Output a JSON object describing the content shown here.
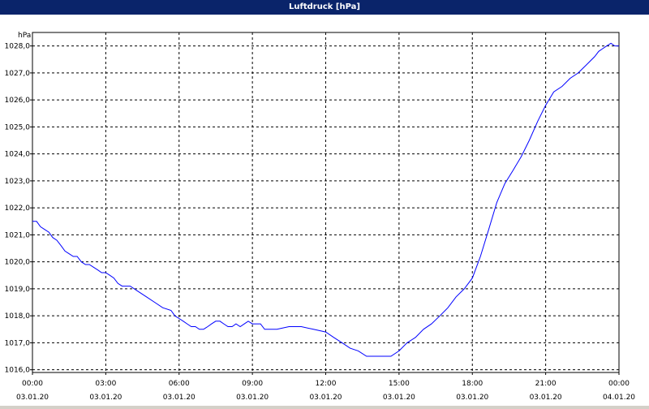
{
  "window": {
    "title": "Luftdruck [hPa]"
  },
  "colors": {
    "titlebar": "#0a246a",
    "line": "#0000ff",
    "background": "#ffffff",
    "grid": "#000000"
  },
  "chart_data": {
    "type": "line",
    "title": "Luftdruck [hPa]",
    "ylabel": "hPa",
    "xlabel": "",
    "ylim": [
      1015.9,
      1028.5
    ],
    "xlim_hours": [
      0,
      24
    ],
    "grid": true,
    "yticks": [
      "1016,0",
      "1017,0",
      "1018,0",
      "1019,0",
      "1020,0",
      "1021,0",
      "1022,0",
      "1023,0",
      "1024,0",
      "1025,0",
      "1026,0",
      "1027,0",
      "1028,0"
    ],
    "ytick_values": [
      1016,
      1017,
      1018,
      1019,
      1020,
      1021,
      1022,
      1023,
      1024,
      1025,
      1026,
      1027,
      1028
    ],
    "xticks": [
      {
        "time": "00:00",
        "date": "03.01.20"
      },
      {
        "time": "03:00",
        "date": "03.01.20"
      },
      {
        "time": "06:00",
        "date": "03.01.20"
      },
      {
        "time": "09:00",
        "date": "03.01.20"
      },
      {
        "time": "12:00",
        "date": "03.01.20"
      },
      {
        "time": "15:00",
        "date": "03.01.20"
      },
      {
        "time": "18:00",
        "date": "03.01.20"
      },
      {
        "time": "21:00",
        "date": "03.01.20"
      },
      {
        "time": "00:00",
        "date": "04.01.20"
      }
    ],
    "series": [
      {
        "x": [
          0,
          0.17,
          0.33,
          0.5,
          0.67,
          0.83,
          1.0,
          1.17,
          1.33,
          1.5,
          1.67,
          1.83,
          2.0,
          2.17,
          2.33,
          2.5,
          2.67,
          2.83,
          3.0,
          3.17,
          3.33,
          3.5,
          3.67,
          3.83,
          4.0,
          4.33,
          4.67,
          5.0,
          5.33,
          5.67,
          5.83,
          6.0,
          6.17,
          6.33,
          6.5,
          6.67,
          6.83,
          7.0,
          7.17,
          7.33,
          7.5,
          7.67,
          7.83,
          8.0,
          8.17,
          8.33,
          8.5,
          8.67,
          8.83,
          9.0,
          9.17,
          9.33,
          9.5,
          9.67,
          9.83,
          10.0,
          10.5,
          11.0,
          11.5,
          12.0,
          12.33,
          12.67,
          13.0,
          13.33,
          13.67,
          14.0,
          14.33,
          14.67,
          15.0,
          15.33,
          15.67,
          16.0,
          16.33,
          16.67,
          17.0,
          17.33,
          17.67,
          18.0,
          18.33,
          18.67,
          19.0,
          19.33,
          19.67,
          20.0,
          20.33,
          20.67,
          21.0,
          21.33,
          21.67,
          22.0,
          22.33,
          22.67,
          23.0,
          23.17,
          23.33,
          23.5,
          23.67,
          23.83,
          24.0
        ],
        "y": [
          1021.5,
          1021.5,
          1021.3,
          1021.2,
          1021.1,
          1020.9,
          1020.8,
          1020.6,
          1020.4,
          1020.3,
          1020.2,
          1020.2,
          1020.0,
          1019.9,
          1019.9,
          1019.8,
          1019.7,
          1019.6,
          1019.6,
          1019.5,
          1019.4,
          1019.2,
          1019.1,
          1019.1,
          1019.1,
          1018.9,
          1018.7,
          1018.5,
          1018.3,
          1018.2,
          1018.0,
          1017.9,
          1017.8,
          1017.7,
          1017.6,
          1017.6,
          1017.5,
          1017.5,
          1017.6,
          1017.7,
          1017.8,
          1017.8,
          1017.7,
          1017.6,
          1017.6,
          1017.7,
          1017.6,
          1017.7,
          1017.8,
          1017.7,
          1017.7,
          1017.7,
          1017.5,
          1017.5,
          1017.5,
          1017.5,
          1017.6,
          1017.6,
          1017.5,
          1017.4,
          1017.2,
          1017.0,
          1016.8,
          1016.7,
          1016.5,
          1016.5,
          1016.5,
          1016.5,
          1016.7,
          1017.0,
          1017.2,
          1017.5,
          1017.7,
          1018.0,
          1018.3,
          1018.7,
          1019.0,
          1019.4,
          1020.2,
          1021.2,
          1022.2,
          1022.9,
          1023.4,
          1023.9,
          1024.5,
          1025.2,
          1025.8,
          1026.3,
          1026.5,
          1026.8,
          1027.0,
          1027.3,
          1027.6,
          1027.8,
          1027.9,
          1028.0,
          1028.1,
          1028.0,
          1028.0
        ]
      }
    ]
  }
}
